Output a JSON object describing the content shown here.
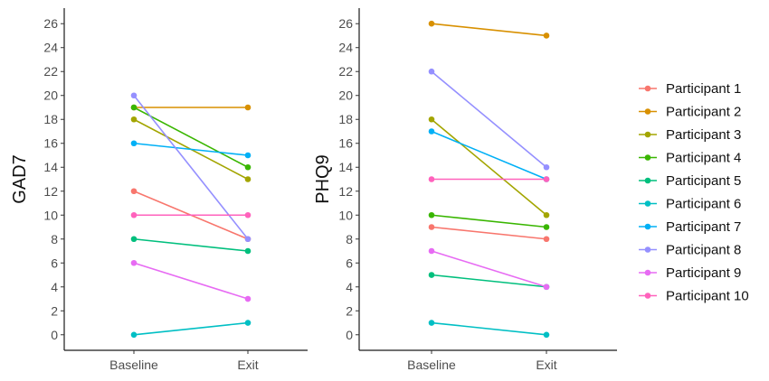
{
  "chart_data": [
    {
      "type": "line",
      "title": "",
      "xlabel": "",
      "ylabel": "GAD7",
      "categories": [
        "Baseline",
        "Exit"
      ],
      "ylim": [
        -1.3,
        27.3
      ],
      "yticks": [
        0,
        2,
        4,
        6,
        8,
        10,
        12,
        14,
        16,
        18,
        20,
        22,
        24,
        26
      ],
      "grid": false,
      "series": [
        {
          "name": "Participant 1",
          "values": [
            12,
            8
          ]
        },
        {
          "name": "Participant 2",
          "values": [
            19,
            19
          ]
        },
        {
          "name": "Participant 3",
          "values": [
            18,
            13
          ]
        },
        {
          "name": "Participant 4",
          "values": [
            19,
            14
          ]
        },
        {
          "name": "Participant 5",
          "values": [
            8,
            7
          ]
        },
        {
          "name": "Participant 6",
          "values": [
            0,
            1
          ]
        },
        {
          "name": "Participant 7",
          "values": [
            16,
            15
          ]
        },
        {
          "name": "Participant 8",
          "values": [
            20,
            8
          ]
        },
        {
          "name": "Participant 9",
          "values": [
            6,
            3
          ]
        },
        {
          "name": "Participant 10",
          "values": [
            10,
            10
          ]
        }
      ]
    },
    {
      "type": "line",
      "title": "",
      "xlabel": "",
      "ylabel": "PHQ9",
      "categories": [
        "Baseline",
        "Exit"
      ],
      "ylim": [
        -1.3,
        27.3
      ],
      "yticks": [
        0,
        2,
        4,
        6,
        8,
        10,
        12,
        14,
        16,
        18,
        20,
        22,
        24,
        26
      ],
      "grid": false,
      "series": [
        {
          "name": "Participant 1",
          "values": [
            9,
            8
          ]
        },
        {
          "name": "Participant 2",
          "values": [
            26,
            25
          ]
        },
        {
          "name": "Participant 3",
          "values": [
            18,
            10
          ]
        },
        {
          "name": "Participant 4",
          "values": [
            10,
            9
          ]
        },
        {
          "name": "Participant 5",
          "values": [
            5,
            4
          ]
        },
        {
          "name": "Participant 6",
          "values": [
            1,
            0
          ]
        },
        {
          "name": "Participant 7",
          "values": [
            17,
            13
          ]
        },
        {
          "name": "Participant 8",
          "values": [
            22,
            14
          ]
        },
        {
          "name": "Participant 9",
          "values": [
            7,
            4
          ]
        },
        {
          "name": "Participant 10",
          "values": [
            13,
            13
          ]
        }
      ]
    }
  ],
  "legend": {
    "placement": "right",
    "items": [
      {
        "label": "Participant 1",
        "color": "#F8766D"
      },
      {
        "label": "Participant 2",
        "color": "#D89000"
      },
      {
        "label": "Participant 3",
        "color": "#A3A500"
      },
      {
        "label": "Participant 4",
        "color": "#39B600"
      },
      {
        "label": "Participant 5",
        "color": "#00BF7D"
      },
      {
        "label": "Participant 6",
        "color": "#00BFC4"
      },
      {
        "label": "Participant 7",
        "color": "#00B0F6"
      },
      {
        "label": "Participant 8",
        "color": "#9590FF"
      },
      {
        "label": "Participant 9",
        "color": "#E76BF3"
      },
      {
        "label": "Participant 10",
        "color": "#FF62BC"
      }
    ]
  }
}
